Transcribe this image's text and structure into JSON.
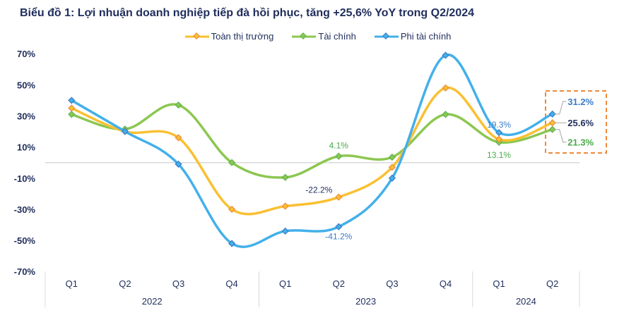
{
  "chart_data": {
    "type": "line",
    "title": "Biểu đồ 1: Lợi nhuận doanh nghiệp tiếp đà hồi phục, tăng +25,6% YoY trong Q2/2024",
    "categories": [
      "Q1",
      "Q2",
      "Q3",
      "Q4",
      "Q1",
      "Q2",
      "Q3",
      "Q4",
      "Q1",
      "Q2"
    ],
    "groups": [
      {
        "label": "2022",
        "count": 4
      },
      {
        "label": "2023",
        "count": 4
      },
      {
        "label": "2024",
        "count": 2
      }
    ],
    "yticks": [
      "70%",
      "50%",
      "30%",
      "10%",
      "-10%",
      "-30%",
      "-50%",
      "-70%"
    ],
    "ylim": [
      -70,
      70
    ],
    "grid": false,
    "legend_position": "top",
    "series": [
      {
        "name": "Toàn thị trường",
        "color": "#f9c032",
        "marker": "#ee8a3a",
        "values": [
          35,
          20,
          16,
          -30,
          -28,
          -22.2,
          -3,
          48,
          15,
          25.6
        ],
        "labels": [
          {
            "i": 5,
            "text": "-22.2%",
            "color": "#1f2d5c"
          },
          {
            "i": 9,
            "text": "25.6%",
            "color": "#1f2d5c",
            "bold": true
          }
        ]
      },
      {
        "name": "Tài chính",
        "color": "#8cc751",
        "marker": "#5bb450",
        "values": [
          31,
          21.5,
          37,
          0,
          -9.5,
          4.1,
          3.5,
          31,
          13.1,
          21.3
        ],
        "labels": [
          {
            "i": 5,
            "text": "4.1%",
            "color": "#4aaa4a"
          },
          {
            "i": 8,
            "text": "13.1%",
            "color": "#4aaa4a"
          },
          {
            "i": 9,
            "text": "21.3%",
            "color": "#4aaa4a",
            "bold": true
          }
        ]
      },
      {
        "name": "Phi tài chính",
        "color": "#43b0ea",
        "marker": "#3a7cc8",
        "values": [
          40,
          20,
          -1,
          -52,
          -44,
          -41.2,
          -10,
          69,
          19.3,
          31.2
        ],
        "labels": [
          {
            "i": 5,
            "text": "-41.2%",
            "color": "#3a7cc8"
          },
          {
            "i": 8,
            "text": "19.3%",
            "color": "#3a7cc8"
          },
          {
            "i": 9,
            "text": "31.2%",
            "color": "#3a7cc8",
            "bold": true
          }
        ]
      }
    ],
    "highlight_box_color": "#ee8a3a"
  }
}
